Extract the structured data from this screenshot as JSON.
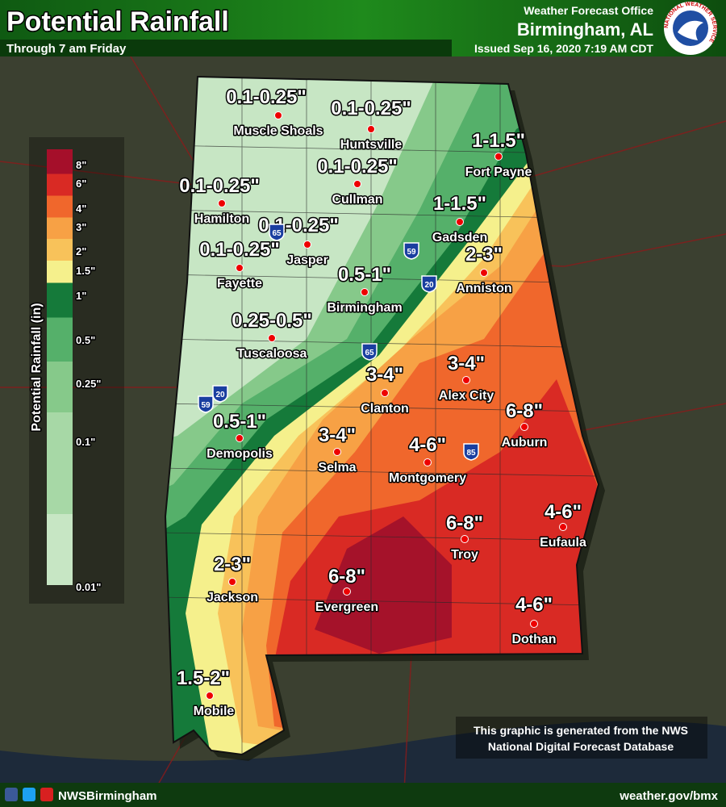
{
  "header": {
    "title": "Potential Rainfall",
    "subtitle": "Through 7 am Friday",
    "office_line": "Weather Forecast Office",
    "office": "Birmingham, AL",
    "issued": "Issued Sep 16, 2020 7:19 AM CDT",
    "logo_text": "NATIONAL WEATHER SERVICE"
  },
  "legend": {
    "title": "Potential Rainfall (in)",
    "labels": [
      "8\"",
      "6\"",
      "4\"",
      "3\"",
      "2\"",
      "1.5\"",
      "1\"",
      "0.5\"",
      "0.25\"",
      "0.1\"",
      "0.01\""
    ]
  },
  "cities": [
    {
      "name": "Muscle Shoals",
      "value": "0.1-0.25\""
    },
    {
      "name": "Huntsville",
      "value": "0.1-0.25\""
    },
    {
      "name": "Cullman",
      "value": "0.1-0.25\""
    },
    {
      "name": "Hamilton",
      "value": "0.1-0.25\""
    },
    {
      "name": "Jasper",
      "value": "0.1-0.25\""
    },
    {
      "name": "Fayette",
      "value": "0.1-0.25\""
    },
    {
      "name": "Birmingham",
      "value": "0.5-1\""
    },
    {
      "name": "Tuscaloosa",
      "value": "0.25-0.5\""
    },
    {
      "name": "Fort Payne",
      "value": "1-1.5\""
    },
    {
      "name": "Gadsden",
      "value": "1-1.5\""
    },
    {
      "name": "Anniston",
      "value": "2-3\""
    },
    {
      "name": "Alex City",
      "value": "3-4\""
    },
    {
      "name": "Clanton",
      "value": "3-4\""
    },
    {
      "name": "Auburn",
      "value": "6-8\""
    },
    {
      "name": "Demopolis",
      "value": "0.5-1\""
    },
    {
      "name": "Selma",
      "value": "3-4\""
    },
    {
      "name": "Montgomery",
      "value": "4-6\""
    },
    {
      "name": "Eufaula",
      "value": "4-6\""
    },
    {
      "name": "Troy",
      "value": "6-8\""
    },
    {
      "name": "Jackson",
      "value": "2-3\""
    },
    {
      "name": "Evergreen",
      "value": "6-8\""
    },
    {
      "name": "Dothan",
      "value": "4-6\""
    },
    {
      "name": "Mobile",
      "value": "1.5-2\""
    }
  ],
  "interstates": [
    "65",
    "59",
    "20",
    "65",
    "20",
    "59",
    "85"
  ],
  "note": [
    "This graphic is generated from the NWS",
    "National Digital Forecast Database"
  ],
  "footer": {
    "social": "NWSBirmingham",
    "url": "weather.gov/bmx"
  }
}
